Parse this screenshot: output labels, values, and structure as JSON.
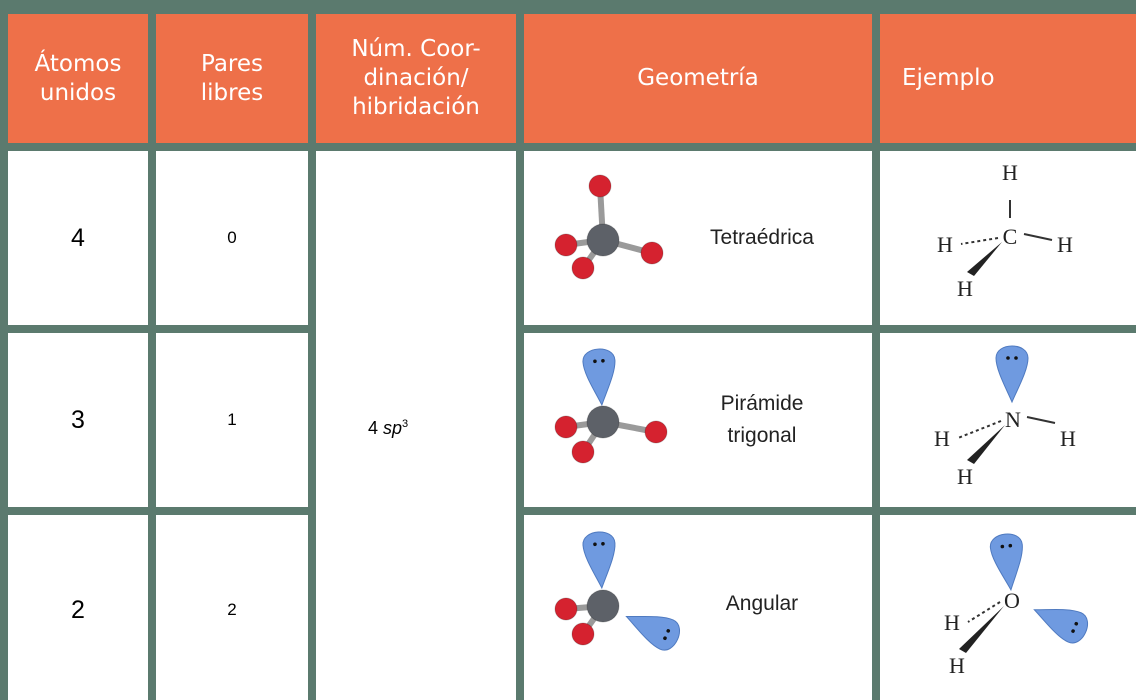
{
  "header": {
    "columns": [
      [
        "Átomos",
        "unidos"
      ],
      [
        "Pares",
        "libres"
      ],
      [
        "Núm. Coor-",
        "dinación/",
        "hibridación"
      ],
      [
        "Geometría"
      ],
      [
        "Ejemplo"
      ]
    ]
  },
  "table": {
    "hybridization": {
      "number": "4",
      "orbital": "sp",
      "superscript": "3"
    },
    "rows": [
      {
        "atoms": 4,
        "lone_pairs": 0,
        "geometry": [
          "Tetraédrica"
        ],
        "example": {
          "center": "C",
          "top": "H",
          "left": "H",
          "right": "H",
          "bottom": "H"
        }
      },
      {
        "atoms": 3,
        "lone_pairs": 1,
        "geometry": [
          "Pirámide",
          "trigonal"
        ],
        "example": {
          "center": "N",
          "left": "H",
          "right": "H",
          "bottom": "H"
        }
      },
      {
        "atoms": 2,
        "lone_pairs": 2,
        "geometry": [
          "Angular"
        ],
        "example": {
          "center": "O",
          "left": "H",
          "bottom": "H"
        }
      }
    ]
  }
}
